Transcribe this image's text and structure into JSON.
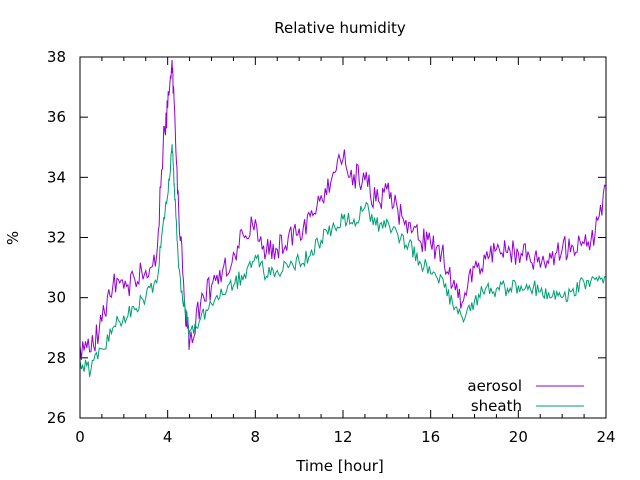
{
  "chart_data": {
    "type": "line",
    "title": "Relative humidity",
    "xlabel": "Time [hour]",
    "ylabel": "%",
    "xlim": [
      0,
      24
    ],
    "ylim": [
      26,
      38
    ],
    "xticks": [
      0,
      4,
      8,
      12,
      16,
      20,
      24
    ],
    "yticks": [
      26,
      28,
      30,
      32,
      34,
      36,
      38
    ],
    "grid": false,
    "legend_position": "bottom-right",
    "series": [
      {
        "name": "aerosol",
        "color": "#9400d3",
        "x": [
          0,
          0.5,
          1,
          1.5,
          2,
          2.5,
          3,
          3.5,
          3.8,
          4,
          4.2,
          4.3,
          4.5,
          4.8,
          5,
          5.5,
          6,
          6.5,
          7,
          7.5,
          8,
          8.5,
          9,
          9.5,
          10,
          10.5,
          11,
          11.5,
          12,
          12.5,
          13,
          13.5,
          14,
          14.5,
          15,
          15.5,
          16,
          16.5,
          17,
          17.5,
          18,
          18.5,
          19,
          19.5,
          20,
          20.5,
          21,
          21.5,
          22,
          22.5,
          23,
          23.5,
          24
        ],
        "y": [
          28.4,
          28.2,
          29.2,
          30.4,
          30.3,
          30.6,
          30.9,
          31.4,
          35.2,
          36.3,
          37.9,
          36.5,
          33.0,
          29.6,
          28.5,
          29.8,
          30.4,
          30.9,
          31.5,
          32.0,
          32.6,
          31.5,
          31.6,
          32.0,
          32.3,
          32.7,
          33.4,
          34.0,
          34.6,
          34.1,
          33.9,
          33.2,
          33.6,
          32.9,
          32.5,
          31.9,
          31.8,
          31.5,
          30.4,
          29.9,
          31.0,
          31.3,
          31.6,
          31.5,
          31.5,
          31.4,
          31.0,
          31.3,
          31.6,
          31.7,
          31.8,
          32.1,
          33.7
        ]
      },
      {
        "name": "sheath",
        "color": "#009e73",
        "x": [
          0,
          0.5,
          1,
          1.5,
          2,
          2.5,
          3,
          3.5,
          3.8,
          4,
          4.2,
          4.3,
          4.5,
          4.8,
          5,
          5.5,
          6,
          6.5,
          7,
          7.5,
          8,
          8.5,
          9,
          9.5,
          10,
          10.5,
          11,
          11.5,
          12,
          12.5,
          13,
          13.5,
          14,
          14.5,
          15,
          15.5,
          16,
          16.5,
          17,
          17.5,
          18,
          18.5,
          19,
          19.5,
          20,
          20.5,
          21,
          21.5,
          22,
          22.5,
          23,
          23.5,
          24
        ],
        "y": [
          27.9,
          27.6,
          28.3,
          29.0,
          29.4,
          29.6,
          30.0,
          30.5,
          32.5,
          33.4,
          35.1,
          33.8,
          31.0,
          29.5,
          28.9,
          29.3,
          29.8,
          30.1,
          30.4,
          30.8,
          31.4,
          30.7,
          30.9,
          31.0,
          31.2,
          31.4,
          31.9,
          32.3,
          32.6,
          32.6,
          33.0,
          32.4,
          32.6,
          32.1,
          31.8,
          31.2,
          30.8,
          30.7,
          29.8,
          29.2,
          29.9,
          30.3,
          30.3,
          30.3,
          30.4,
          30.4,
          30.2,
          30.0,
          30.0,
          30.3,
          30.5,
          30.6,
          30.7
        ]
      }
    ]
  }
}
